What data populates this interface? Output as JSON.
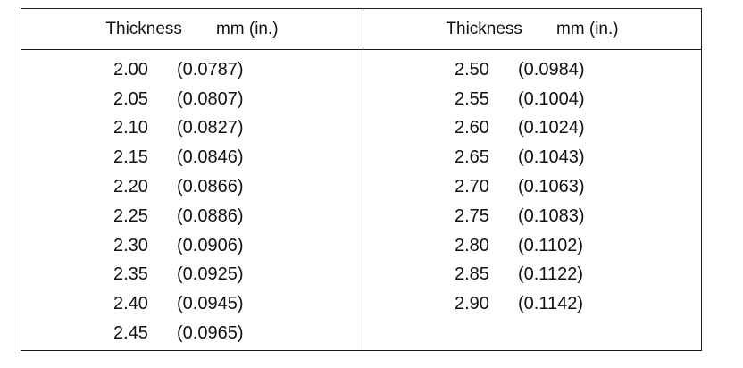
{
  "header": {
    "left": {
      "label": "Thickness",
      "unit": "mm (in.)"
    },
    "right": {
      "label": "Thickness",
      "unit": "mm (in.)"
    }
  },
  "left_column": [
    {
      "mm": "2.00",
      "inch": "(0.0787)"
    },
    {
      "mm": "2.05",
      "inch": "(0.0807)"
    },
    {
      "mm": "2.10",
      "inch": "(0.0827)"
    },
    {
      "mm": "2.15",
      "inch": "(0.0846)"
    },
    {
      "mm": "2.20",
      "inch": "(0.0866)"
    },
    {
      "mm": "2.25",
      "inch": "(0.0886)"
    },
    {
      "mm": "2.30",
      "inch": "(0.0906)"
    },
    {
      "mm": "2.35",
      "inch": "(0.0925)"
    },
    {
      "mm": "2.40",
      "inch": "(0.0945)"
    },
    {
      "mm": "2.45",
      "inch": "(0.0965)"
    }
  ],
  "right_column": [
    {
      "mm": "2.50",
      "inch": "(0.0984)"
    },
    {
      "mm": "2.55",
      "inch": "(0.1004)"
    },
    {
      "mm": "2.60",
      "inch": "(0.1024)"
    },
    {
      "mm": "2.65",
      "inch": "(0.1043)"
    },
    {
      "mm": "2.70",
      "inch": "(0.1063)"
    },
    {
      "mm": "2.75",
      "inch": "(0.1083)"
    },
    {
      "mm": "2.80",
      "inch": "(0.1102)"
    },
    {
      "mm": "2.85",
      "inch": "(0.1122)"
    },
    {
      "mm": "2.90",
      "inch": "(0.1142)"
    }
  ]
}
